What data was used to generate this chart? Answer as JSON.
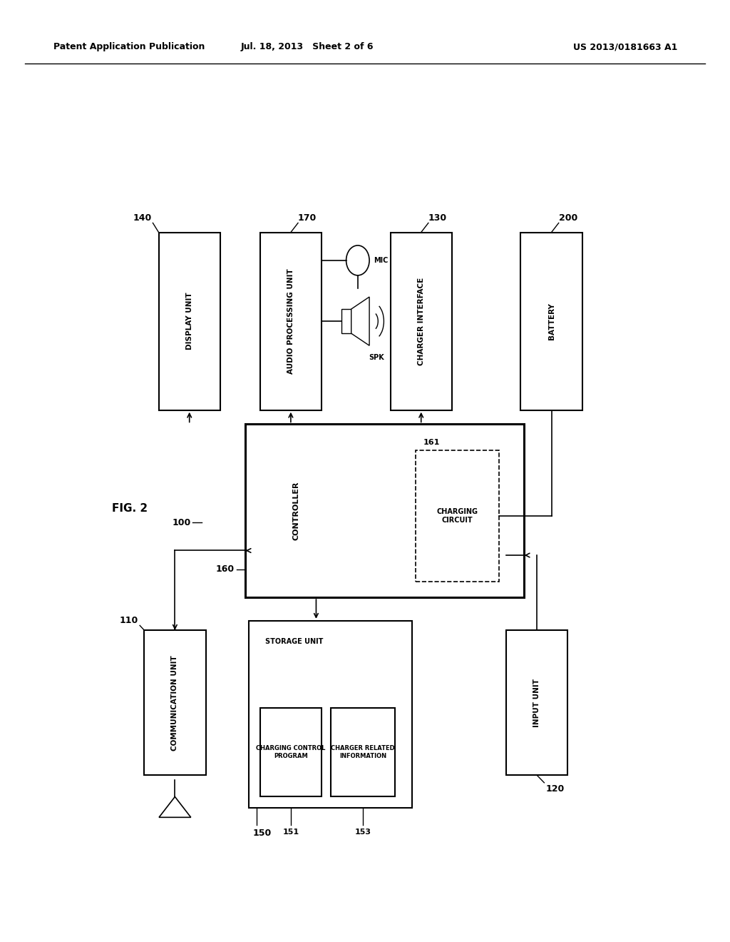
{
  "header_left": "Patent Application Publication",
  "header_mid": "Jul. 18, 2013   Sheet 2 of 6",
  "header_right": "US 2013/0181663 A1",
  "fig_label": "FIG. 2",
  "system_label": "100",
  "background_color": "#ffffff"
}
